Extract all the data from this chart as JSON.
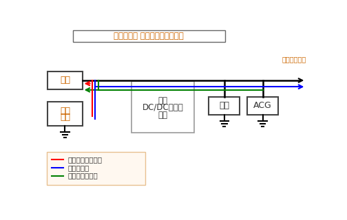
{
  "title": "电容器电源 怠速熄火系统的框图",
  "title_color": "#CC6600",
  "bg_color": "#ffffff",
  "legend_label_red": "发动机再次启动时",
  "legend_label_blue": "怠速熄火时",
  "legend_label_green": "减速能量回收时",
  "box_stator_label": "定子",
  "box_cap_label1": "电容",
  "box_cap_label2": "模组",
  "box_dcdc_label1": "双向",
  "box_dcdc_label2": "DC/DC转换器",
  "box_dcdc_label3": "组件",
  "box_battery_label": "电池",
  "box_acg_label": "ACG",
  "label_load": "电装设备负载",
  "label_color_orange": "#CC6600",
  "text_color_dark": "#333333",
  "text_color_gray": "#555555"
}
